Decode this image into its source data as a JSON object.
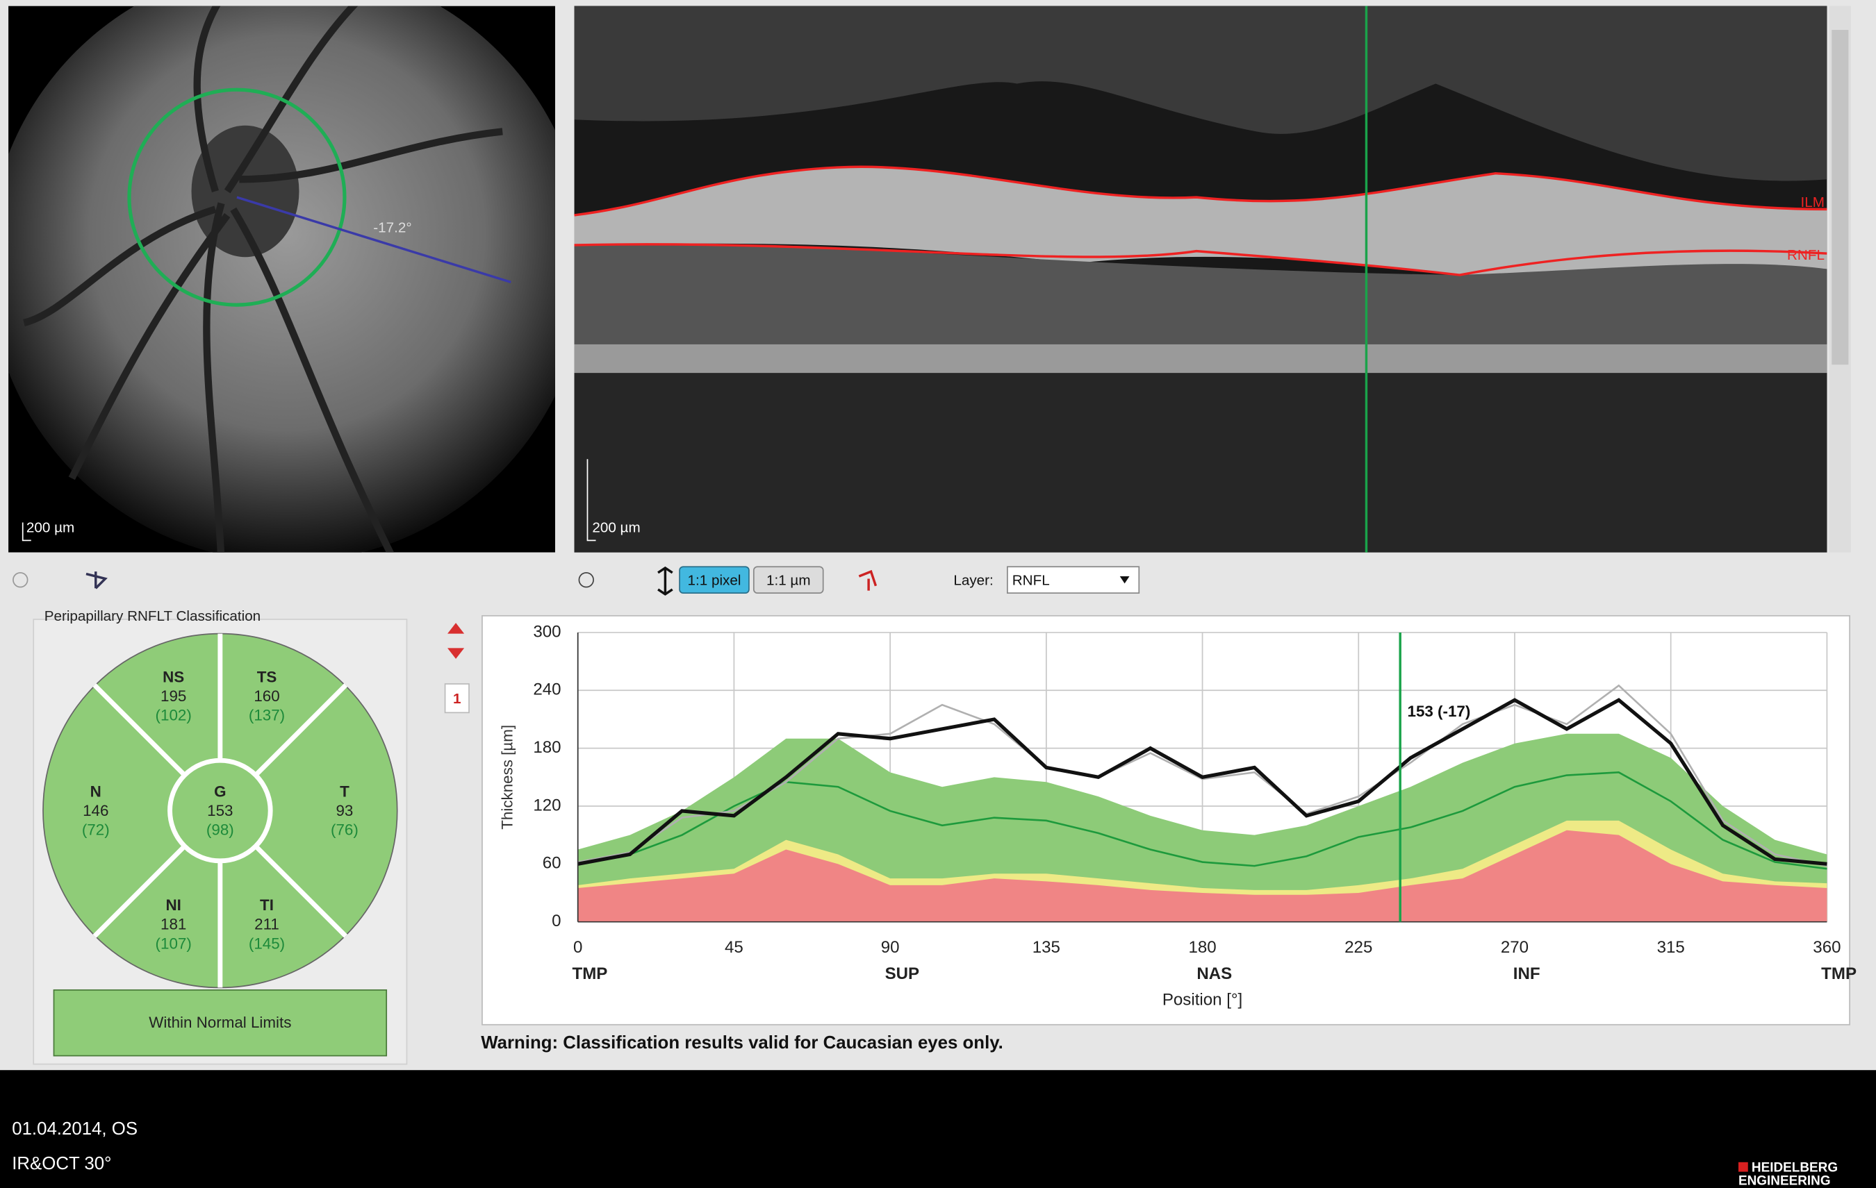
{
  "fundus": {
    "angle_label": "-17.2°",
    "scale_label": "200 µm"
  },
  "bscan": {
    "layer_labels": [
      "ILM",
      "RNFL"
    ],
    "scale_label": "200 µm"
  },
  "toolbar": {
    "buttons": [
      "1:1 pixel",
      "1:1 µm"
    ],
    "layer_label": "Layer:",
    "layer_value": "RNFL"
  },
  "classification": {
    "title": "Peripapillary RNFLT Classification",
    "sectors": [
      {
        "name": "NS",
        "value": 195,
        "normal": "(102)"
      },
      {
        "name": "TS",
        "value": 160,
        "normal": "(137)"
      },
      {
        "name": "N",
        "value": 146,
        "normal": "(72)"
      },
      {
        "name": "G",
        "value": 153,
        "normal": "(98)"
      },
      {
        "name": "T",
        "value": 93,
        "normal": "(76)"
      },
      {
        "name": "NI",
        "value": 181,
        "normal": "(107)"
      },
      {
        "name": "TI",
        "value": 211,
        "normal": "(145)"
      }
    ],
    "result": "Within Normal Limits"
  },
  "page_marker": "1",
  "chart_data": {
    "type": "area",
    "y_label": "Thickness [µm]",
    "x_label": "Position [°]",
    "x": [
      0,
      15,
      30,
      45,
      60,
      75,
      90,
      105,
      120,
      135,
      150,
      165,
      180,
      195,
      210,
      225,
      240,
      255,
      270,
      285,
      300,
      315,
      330,
      345,
      360
    ],
    "series": [
      {
        "color": "#8dcb78",
        "fill": true,
        "values": [
          75,
          90,
          115,
          150,
          190,
          190,
          155,
          140,
          150,
          145,
          130,
          110,
          95,
          90,
          100,
          120,
          140,
          165,
          185,
          195,
          195,
          170,
          120,
          85,
          70
        ]
      },
      {
        "color": "#eeea86",
        "fill": true,
        "values": [
          38,
          45,
          50,
          55,
          85,
          70,
          45,
          45,
          50,
          50,
          45,
          40,
          35,
          33,
          33,
          38,
          45,
          55,
          80,
          105,
          105,
          75,
          50,
          42,
          40
        ]
      },
      {
        "color": "#f08585",
        "fill": true,
        "values": [
          35,
          40,
          45,
          50,
          75,
          60,
          38,
          38,
          45,
          42,
          38,
          33,
          30,
          28,
          28,
          30,
          38,
          45,
          70,
          95,
          90,
          60,
          42,
          38,
          35
        ]
      },
      {
        "color": "#1d9a3c",
        "fill": false,
        "width": 1.5,
        "values": [
          60,
          70,
          90,
          120,
          145,
          140,
          115,
          100,
          108,
          105,
          92,
          75,
          62,
          58,
          68,
          88,
          98,
          115,
          140,
          152,
          155,
          125,
          85,
          62,
          55
        ]
      },
      {
        "color": "#b0b0b0",
        "fill": false,
        "width": 1.5,
        "values": [
          62,
          72,
          108,
          115,
          145,
          190,
          195,
          225,
          205,
          160,
          150,
          175,
          148,
          155,
          112,
          130,
          165,
          205,
          225,
          205,
          245,
          195,
          105,
          70,
          58
        ]
      },
      {
        "color": "#111111",
        "fill": false,
        "width": 3,
        "values": [
          60,
          70,
          115,
          110,
          150,
          195,
          190,
          200,
          210,
          160,
          150,
          180,
          150,
          160,
          110,
          125,
          170,
          200,
          230,
          200,
          230,
          185,
          100,
          65,
          60
        ]
      }
    ],
    "cursor_x": 237,
    "cursor_color": "#1aa34a",
    "annotation": "153 (-17)",
    "xlim": [
      0,
      360
    ],
    "ylim": [
      0,
      300
    ],
    "xticks": [
      0,
      45,
      90,
      135,
      180,
      225,
      270,
      315,
      360
    ],
    "yticks": [
      0,
      60,
      120,
      180,
      240,
      300
    ],
    "region_labels": [
      {
        "value": 0,
        "label": "TMP"
      },
      {
        "value": 90,
        "label": "SUP"
      },
      {
        "value": 180,
        "label": "NAS"
      },
      {
        "value": 270,
        "label": "INF"
      },
      {
        "value": 360,
        "label": "TMP"
      }
    ],
    "grid": true
  },
  "warning": "Warning: Classification results valid for Caucasian eyes only.",
  "footer": {
    "date": "01.04.2014, OS",
    "mode": "IR&OCT 30°",
    "logo": [
      "HEIDELBERG",
      "ENGINEERING"
    ]
  }
}
